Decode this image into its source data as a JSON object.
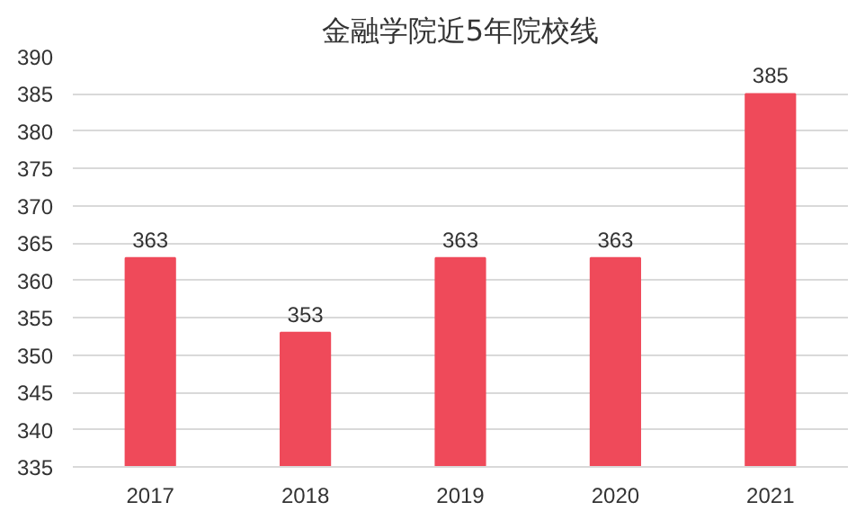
{
  "chart_data": {
    "type": "bar",
    "title": "金融学院近5年院校线",
    "categories": [
      "2017",
      "2018",
      "2019",
      "2020",
      "2021"
    ],
    "values": [
      363,
      353,
      363,
      363,
      385
    ],
    "color": "#ef4a5a",
    "ylim": [
      335,
      390
    ],
    "yticks": [
      335,
      340,
      345,
      350,
      355,
      360,
      365,
      370,
      375,
      380,
      385,
      390
    ],
    "grid": "y",
    "data_labels": true
  }
}
